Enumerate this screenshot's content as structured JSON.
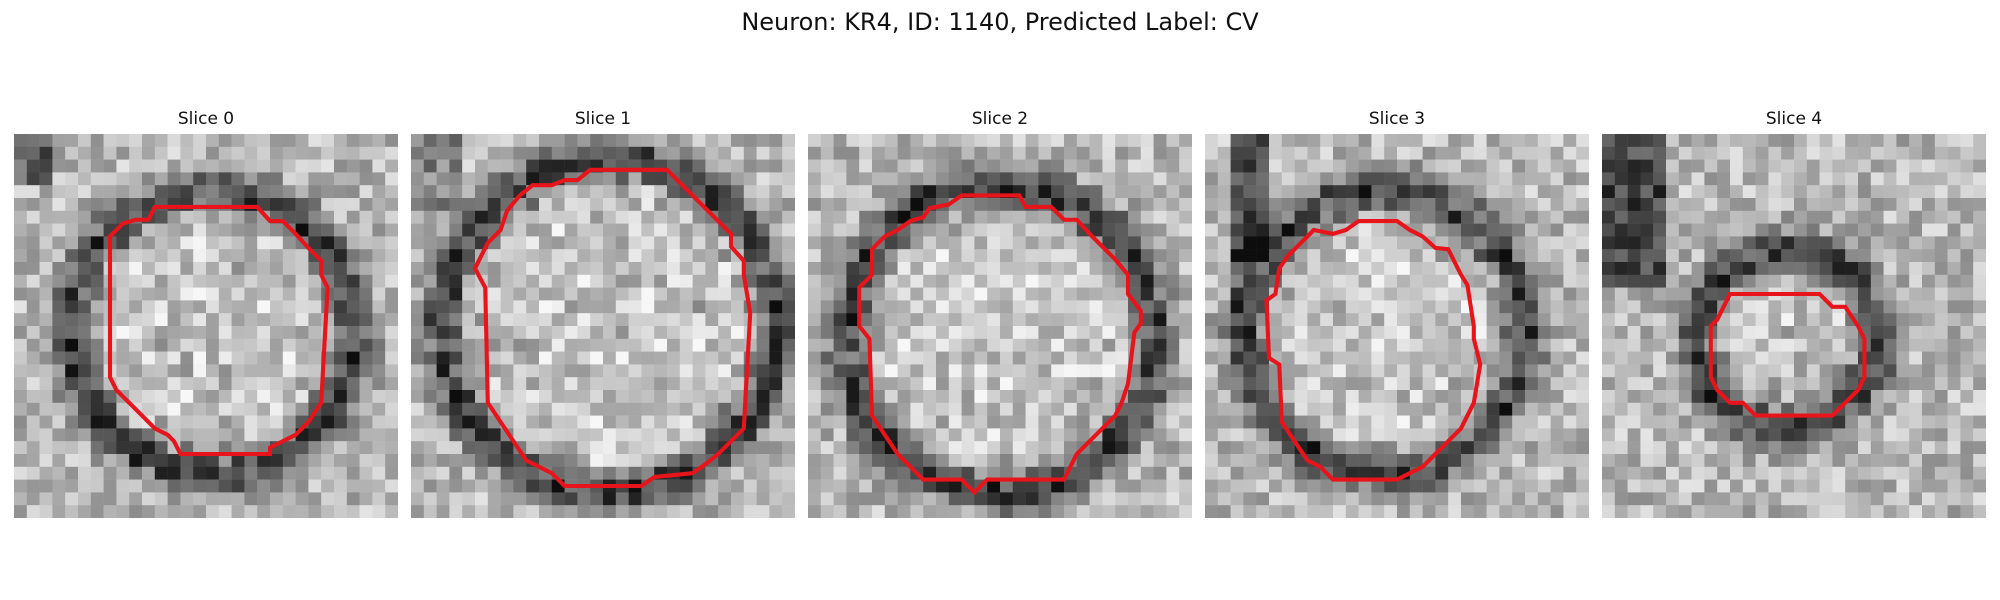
{
  "figure": {
    "title": "Neuron: KR4, ID: 1140, Predicted Label: CV",
    "contour_color": "#e8141b",
    "colormap": "grayscale"
  },
  "panels": [
    {
      "title": "Slice 0"
    },
    {
      "title": "Slice 1"
    },
    {
      "title": "Slice 2"
    },
    {
      "title": "Slice 3"
    },
    {
      "title": "Slice 4"
    }
  ]
}
